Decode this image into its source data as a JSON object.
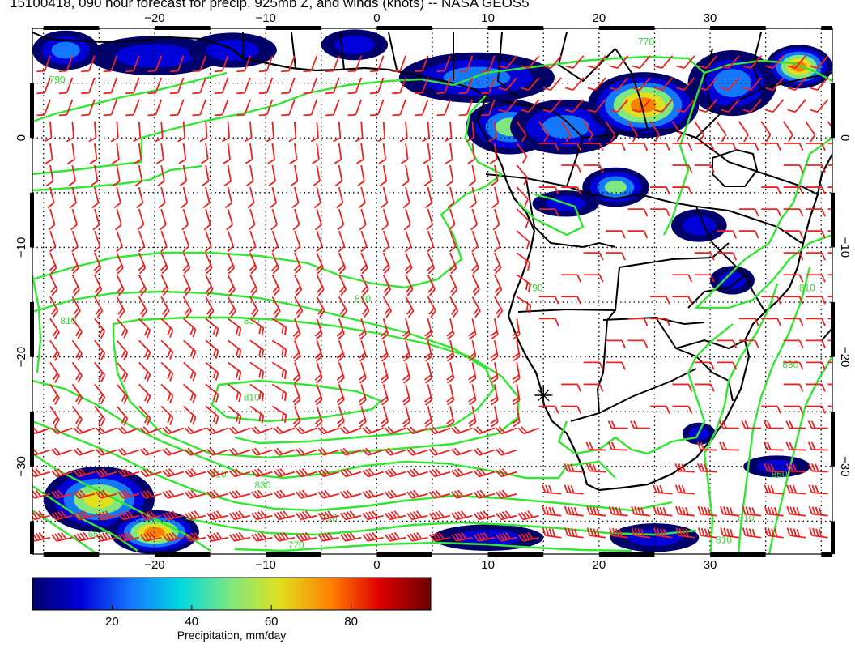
{
  "title": "15100418, 090 hour forecast for precip, 925mb Z, and winds (knots) -- NASA GEOS5",
  "map": {
    "lon_range": [
      -31,
      41
    ],
    "lat_range": [
      10,
      -38
    ],
    "lon_ticks_top": [
      -20,
      -10,
      0,
      10,
      20,
      30
    ],
    "lon_ticks_bottom": [
      -20,
      -10,
      0,
      10,
      20,
      30
    ],
    "lat_ticks_left": [
      0,
      -10,
      -20,
      -30
    ],
    "lat_ticks_right": [
      0,
      -10,
      -20,
      -30
    ],
    "lon_tick_labels": [
      "−20",
      "−10",
      "0",
      "10",
      "20",
      "30"
    ],
    "lat_tick_labels": [
      "0",
      "−10",
      "−20",
      "−30"
    ],
    "grid": true,
    "marker_symbol": "+",
    "marker_lon": 15,
    "marker_lat": -23.5
  },
  "contours": {
    "color": "#33e633",
    "labels": [
      {
        "text": "790",
        "lon": -29.5,
        "lat": 5
      },
      {
        "text": "790",
        "lon": 13.5,
        "lat": -14
      },
      {
        "text": "810",
        "lon": -2,
        "lat": -15
      },
      {
        "text": "830",
        "lon": -12,
        "lat": -17
      },
      {
        "text": "810",
        "lon": -12,
        "lat": -24
      },
      {
        "text": "810",
        "lon": -15,
        "lat": -31
      },
      {
        "text": "830",
        "lon": -11,
        "lat": -32
      },
      {
        "text": "790",
        "lon": -5,
        "lat": -35
      },
      {
        "text": "770",
        "lon": -8,
        "lat": -37.5
      },
      {
        "text": "650",
        "lon": -26,
        "lat": -36.5
      },
      {
        "text": "810",
        "lon": 38,
        "lat": -14
      },
      {
        "text": "830",
        "lon": 36.5,
        "lat": -21
      },
      {
        "text": "850",
        "lon": 35.5,
        "lat": -31
      },
      {
        "text": "810",
        "lon": 32.5,
        "lat": -35
      },
      {
        "text": "810",
        "lon": 30.5,
        "lat": -37
      },
      {
        "text": "770",
        "lon": 23.5,
        "lat": 8.5
      },
      {
        "text": "810",
        "lon": -28.5,
        "lat": -17
      }
    ]
  },
  "winds": {
    "color": "#ee2222",
    "units": "knots"
  },
  "precip_regions": [
    {
      "lon": -28,
      "lat": 8,
      "rx": 3,
      "ry": 1.8,
      "max": 40
    },
    {
      "lon": -20,
      "lat": 7.5,
      "rx": 6,
      "ry": 1.8,
      "max": 25
    },
    {
      "lon": -13,
      "lat": 8,
      "rx": 4,
      "ry": 1.6,
      "max": 30
    },
    {
      "lon": -2,
      "lat": 8.5,
      "rx": 3,
      "ry": 1.4,
      "max": 20
    },
    {
      "lon": 9,
      "lat": 5.5,
      "rx": 7,
      "ry": 2.3,
      "max": 45
    },
    {
      "lon": 12,
      "lat": 1,
      "rx": 4,
      "ry": 2.5,
      "max": 55
    },
    {
      "lon": 17,
      "lat": 1,
      "rx": 5,
      "ry": 2.5,
      "max": 35
    },
    {
      "lon": 24,
      "lat": 3,
      "rx": 5,
      "ry": 3,
      "max": 90
    },
    {
      "lon": 32,
      "lat": 5,
      "rx": 4,
      "ry": 3,
      "max": 40
    },
    {
      "lon": 38,
      "lat": 6.5,
      "rx": 3,
      "ry": 2,
      "max": 80
    },
    {
      "lon": 21.5,
      "lat": -4.5,
      "rx": 3,
      "ry": 1.8,
      "max": 60
    },
    {
      "lon": 17,
      "lat": -6,
      "rx": 3,
      "ry": 1.2,
      "max": 20
    },
    {
      "lon": 29,
      "lat": -8,
      "rx": 2.5,
      "ry": 1.5,
      "max": 20
    },
    {
      "lon": 32,
      "lat": -13,
      "rx": 2,
      "ry": 1.3,
      "max": 20
    },
    {
      "lon": -25,
      "lat": -33,
      "rx": 5,
      "ry": 3,
      "max": 70
    },
    {
      "lon": -20,
      "lat": -36,
      "rx": 4,
      "ry": 2,
      "max": 85
    },
    {
      "lon": 10,
      "lat": -36.5,
      "rx": 5,
      "ry": 1.2,
      "max": 30
    },
    {
      "lon": 25,
      "lat": -36.5,
      "rx": 4,
      "ry": 1.3,
      "max": 30
    },
    {
      "lon": 29,
      "lat": -27,
      "rx": 1.5,
      "ry": 1,
      "max": 20
    },
    {
      "lon": 36,
      "lat": -30,
      "rx": 3,
      "ry": 1,
      "max": 20
    }
  ],
  "colorbar": {
    "label": "Precipitation, mm/day",
    "vmin": 0,
    "vmax": 100,
    "ticks": [
      20,
      40,
      60,
      80
    ],
    "tick_labels": [
      "20",
      "40",
      "60",
      "80"
    ]
  }
}
